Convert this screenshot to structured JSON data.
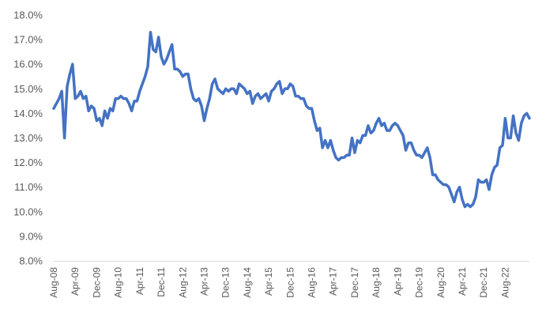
{
  "chart_data": {
    "type": "line",
    "title": "",
    "xlabel": "",
    "ylabel": "",
    "ylim": [
      8.0,
      18.0
    ],
    "y_ticks": [
      "8.0%",
      "9.0%",
      "10.0%",
      "11.0%",
      "12.0%",
      "13.0%",
      "14.0%",
      "15.0%",
      "16.0%",
      "17.0%",
      "18.0%"
    ],
    "x_ticks": [
      "Aug-08",
      "Apr-09",
      "Dec-09",
      "Aug-10",
      "Apr-11",
      "Dec-11",
      "Aug-12",
      "Apr-13",
      "Dec-13",
      "Aug-14",
      "Apr-15",
      "Dec-15",
      "Aug-16",
      "Apr-17",
      "Dec-17",
      "Aug-18",
      "Apr-19",
      "Dec-19",
      "Aug-20",
      "Apr-21",
      "Dec-21",
      "Aug-22"
    ],
    "grid": false,
    "legend": "none",
    "line_color": "#4472C4",
    "series": [
      {
        "start": "Aug-08",
        "frequency": "monthly",
        "values": [
          14.2,
          14.4,
          14.6,
          14.9,
          13.0,
          15.1,
          15.6,
          16.0,
          14.6,
          14.7,
          14.9,
          14.6,
          14.7,
          14.1,
          14.3,
          14.2,
          13.7,
          13.8,
          13.5,
          14.1,
          13.8,
          14.2,
          14.1,
          14.6,
          14.6,
          14.7,
          14.6,
          14.6,
          14.4,
          14.1,
          14.5,
          14.5,
          14.9,
          15.2,
          15.5,
          15.9,
          17.3,
          16.6,
          16.5,
          17.1,
          16.3,
          16.0,
          16.2,
          16.5,
          16.8,
          15.8,
          15.8,
          15.7,
          15.5,
          15.6,
          15.6,
          15.0,
          14.6,
          14.5,
          14.6,
          14.3,
          13.7,
          14.2,
          14.6,
          15.2,
          15.4,
          15.0,
          14.9,
          14.8,
          15.0,
          14.9,
          15.0,
          15.0,
          14.8,
          15.2,
          15.1,
          15.0,
          14.8,
          14.9,
          14.4,
          14.7,
          14.8,
          14.6,
          14.7,
          14.8,
          14.5,
          14.9,
          15.0,
          15.2,
          15.3,
          14.8,
          15.0,
          15.0,
          15.2,
          15.1,
          14.7,
          14.7,
          14.6,
          14.6,
          14.3,
          14.2,
          14.2,
          13.7,
          13.3,
          13.4,
          12.6,
          12.9,
          12.6,
          12.9,
          12.5,
          12.2,
          12.1,
          12.2,
          12.2,
          12.3,
          12.3,
          13.0,
          12.4,
          12.9,
          12.8,
          13.1,
          13.1,
          13.5,
          13.2,
          13.3,
          13.6,
          13.8,
          13.5,
          13.6,
          13.3,
          13.3,
          13.5,
          13.6,
          13.5,
          13.3,
          13.1,
          12.5,
          12.8,
          12.8,
          12.5,
          12.3,
          12.3,
          12.2,
          12.4,
          12.6,
          12.2,
          11.5,
          11.5,
          11.3,
          11.2,
          11.1,
          11.1,
          11.0,
          10.7,
          10.4,
          10.8,
          11.0,
          10.5,
          10.2,
          10.3,
          10.2,
          10.3,
          10.6,
          11.3,
          11.2,
          11.2,
          11.3,
          10.9,
          11.5,
          11.8,
          11.9,
          12.6,
          12.7,
          13.8,
          13.0,
          13.0,
          13.9,
          13.2,
          12.9,
          13.6,
          13.9,
          14.0,
          13.8
        ]
      }
    ]
  }
}
